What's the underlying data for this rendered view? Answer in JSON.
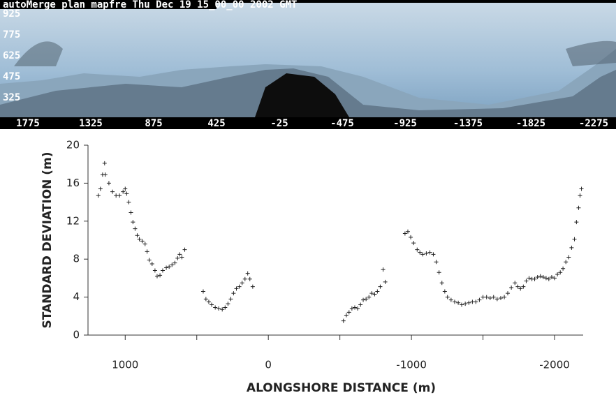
{
  "chart_data": [
    {
      "type": "image",
      "title": "autoMerge plan  mapfre Thu Dec 19 15_00_00 2002 GMT",
      "xlim": [
        1975,
        -2435
      ],
      "xticks": [
        1775,
        1325,
        875,
        425,
        -25,
        -475,
        -925,
        -1375,
        -1825,
        -2275
      ],
      "ylim": [
        185,
        1025
      ],
      "yticks": [
        925,
        775,
        625,
        475,
        325
      ]
    },
    {
      "type": "scatter",
      "ylabel": "STANDARD DEVIATION (m)",
      "xlabel": "ALONGSHORE DISTANCE (m)",
      "color": "#222222",
      "xlim": [
        1260,
        -2200
      ],
      "xticks": [
        1000,
        0,
        -1000,
        -2000
      ],
      "xminor": [
        500,
        -500,
        -1500
      ],
      "ylim": [
        0,
        20
      ],
      "yticks": [
        0,
        4,
        8,
        12,
        16,
        20
      ],
      "x": [
        1188,
        1173,
        1158,
        1144,
        1139,
        1114,
        1089,
        1064,
        1040,
        1015,
        1000,
        990,
        975,
        960,
        946,
        931,
        916,
        901,
        881,
        861,
        847,
        832,
        812,
        792,
        777,
        757,
        738,
        713,
        693,
        673,
        653,
        634,
        619,
        604,
        584,
        455,
        436,
        416,
        396,
        371,
        347,
        322,
        302,
        282,
        262,
        243,
        223,
        203,
        183,
        163,
        144,
        129,
        109,
        -525,
        -545,
        -564,
        -584,
        -604,
        -624,
        -644,
        -663,
        -683,
        -703,
        -723,
        -743,
        -762,
        -782,
        -802,
        -817,
        -955,
        -975,
        -995,
        -1015,
        -1040,
        -1059,
        -1079,
        -1104,
        -1129,
        -1153,
        -1173,
        -1193,
        -1213,
        -1233,
        -1252,
        -1277,
        -1302,
        -1327,
        -1351,
        -1376,
        -1401,
        -1426,
        -1450,
        -1475,
        -1500,
        -1525,
        -1550,
        -1574,
        -1599,
        -1624,
        -1649,
        -1673,
        -1698,
        -1723,
        -1743,
        -1762,
        -1782,
        -1802,
        -1822,
        -1842,
        -1861,
        -1881,
        -1901,
        -1921,
        -1941,
        -1960,
        -1980,
        -2000,
        -2020,
        -2040,
        -2059,
        -2079,
        -2099,
        -2119,
        -2139,
        -2153,
        -2168,
        -2178,
        -2188
      ],
      "values": [
        14.7,
        15.4,
        16.9,
        18.1,
        16.9,
        16.0,
        15.1,
        14.7,
        14.7,
        15.1,
        15.4,
        14.9,
        14.0,
        12.9,
        11.9,
        11.2,
        10.5,
        10.1,
        9.9,
        9.6,
        8.8,
        7.9,
        7.5,
        6.8,
        6.2,
        6.3,
        6.8,
        7.1,
        7.2,
        7.4,
        7.6,
        8.1,
        8.5,
        8.2,
        9.0,
        4.6,
        3.8,
        3.5,
        3.2,
        2.9,
        2.8,
        2.7,
        2.9,
        3.3,
        3.8,
        4.4,
        4.9,
        5.1,
        5.5,
        5.9,
        6.5,
        5.9,
        5.1,
        1.5,
        2.1,
        2.4,
        2.8,
        2.9,
        2.8,
        3.2,
        3.7,
        3.8,
        4.0,
        4.4,
        4.3,
        4.6,
        5.1,
        6.9,
        5.6,
        10.7,
        10.9,
        10.3,
        9.7,
        9.0,
        8.7,
        8.5,
        8.6,
        8.7,
        8.5,
        7.7,
        6.6,
        5.5,
        4.6,
        4.0,
        3.7,
        3.5,
        3.4,
        3.2,
        3.3,
        3.4,
        3.5,
        3.5,
        3.7,
        4.0,
        4.0,
        3.9,
        4.0,
        3.8,
        3.9,
        4.0,
        4.4,
        5.0,
        5.5,
        5.1,
        4.9,
        5.1,
        5.7,
        6.0,
        5.9,
        5.9,
        6.1,
        6.2,
        6.1,
        6.0,
        5.9,
        6.1,
        6.0,
        6.4,
        6.6,
        7.0,
        7.7,
        8.2,
        9.2,
        10.1,
        11.9,
        13.4,
        14.7,
        15.4
      ]
    }
  ]
}
